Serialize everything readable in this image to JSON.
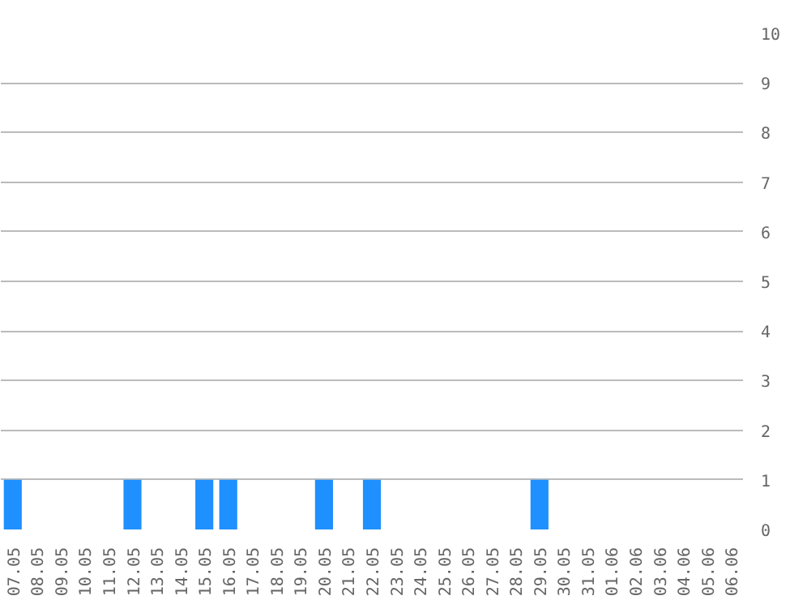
{
  "chart_data": {
    "type": "bar",
    "categories": [
      "07.05",
      "08.05",
      "09.05",
      "10.05",
      "11.05",
      "12.05",
      "13.05",
      "14.05",
      "15.05",
      "16.05",
      "17.05",
      "18.05",
      "19.05",
      "20.05",
      "21.05",
      "22.05",
      "23.05",
      "24.05",
      "25.05",
      "26.05",
      "27.05",
      "28.05",
      "29.05",
      "30.05",
      "31.05",
      "01.06",
      "02.06",
      "03.06",
      "04.06",
      "05.06",
      "06.06"
    ],
    "values": [
      1,
      0,
      0,
      0,
      0,
      1,
      0,
      0,
      1,
      1,
      0,
      0,
      0,
      1,
      0,
      1,
      0,
      0,
      0,
      0,
      0,
      0,
      1,
      0,
      0,
      0,
      0,
      0,
      0,
      0,
      0
    ],
    "color": "#1e90ff",
    "ylim": [
      0,
      10
    ],
    "yticks": [
      0,
      1,
      2,
      3,
      4,
      5,
      6,
      7,
      8,
      9,
      10
    ],
    "grid": "y"
  }
}
